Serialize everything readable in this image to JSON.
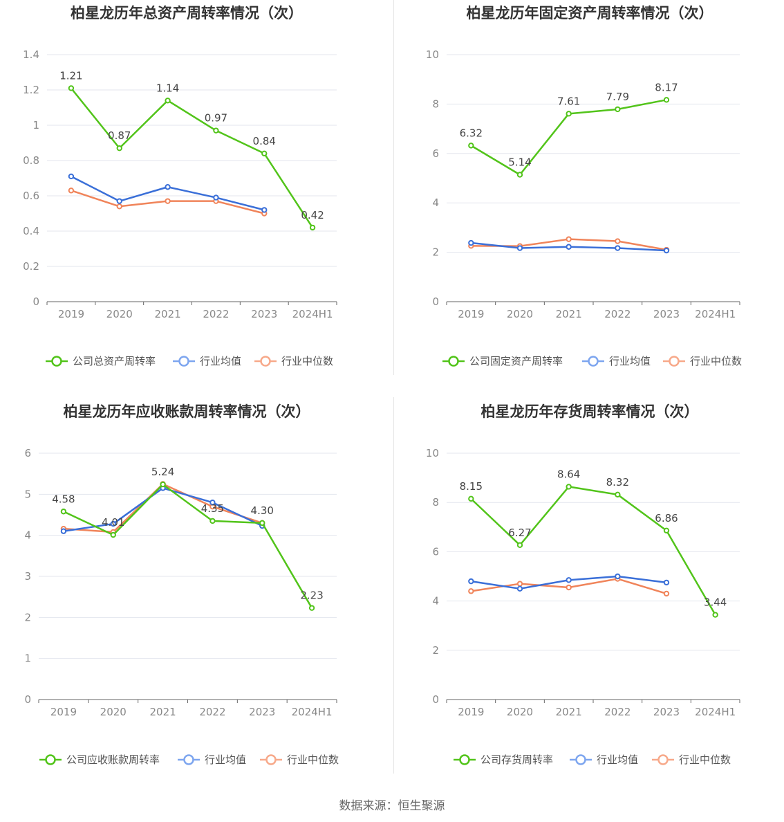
{
  "source": "数据来源：恒生聚源",
  "colors": {
    "company": "#52c41a",
    "industry_avg": "#3a6fd8",
    "industry_median": "#f0845a"
  },
  "chart_data": [
    {
      "type": "line",
      "title": "柏星龙历年总资产周转率情况（次）",
      "categories": [
        "2019",
        "2020",
        "2021",
        "2022",
        "2023",
        "2024H1"
      ],
      "ylim": [
        0,
        1.4
      ],
      "yticks": [
        "0",
        "0.2",
        "0.4",
        "0.6",
        "0.8",
        "1",
        "1.2",
        "1.4"
      ],
      "grid": true,
      "legend_position": "bottom",
      "series": [
        {
          "name": "公司总资产周转率",
          "values": [
            1.21,
            0.87,
            1.14,
            0.97,
            0.84,
            0.42
          ],
          "labels": [
            "1.21",
            "0.87",
            "1.14",
            "0.97",
            "0.84",
            "0.42"
          ]
        },
        {
          "name": "行业均值",
          "values": [
            0.71,
            0.57,
            0.65,
            0.59,
            0.52,
            null
          ]
        },
        {
          "name": "行业中位数",
          "values": [
            0.63,
            0.54,
            0.57,
            0.57,
            0.5,
            null
          ]
        }
      ]
    },
    {
      "type": "line",
      "title": "柏星龙历年固定资产周转率情况（次）",
      "categories": [
        "2019",
        "2020",
        "2021",
        "2022",
        "2023",
        "2024H1"
      ],
      "ylim": [
        0,
        10
      ],
      "yticks": [
        "0",
        "2",
        "4",
        "6",
        "8",
        "10"
      ],
      "grid": true,
      "legend_position": "bottom",
      "series": [
        {
          "name": "公司固定资产周转率",
          "values": [
            6.32,
            5.14,
            7.61,
            7.79,
            8.17,
            null
          ],
          "labels": [
            "6.32",
            "5.14",
            "7.61",
            "7.79",
            "8.17",
            ""
          ]
        },
        {
          "name": "行业均值",
          "values": [
            2.38,
            2.17,
            2.22,
            2.17,
            2.07,
            null
          ]
        },
        {
          "name": "行业中位数",
          "values": [
            2.26,
            2.25,
            2.53,
            2.45,
            2.1,
            null
          ]
        }
      ]
    },
    {
      "type": "line",
      "title": "柏星龙历年应收账款周转率情况（次）",
      "categories": [
        "2019",
        "2020",
        "2021",
        "2022",
        "2023",
        "2024H1"
      ],
      "ylim": [
        0,
        6
      ],
      "yticks": [
        "0",
        "1",
        "2",
        "3",
        "4",
        "5",
        "6"
      ],
      "grid": true,
      "legend_position": "bottom",
      "series": [
        {
          "name": "公司应收账款周转率",
          "values": [
            4.58,
            4.01,
            5.24,
            4.35,
            4.3,
            2.23
          ],
          "labels": [
            "4.58",
            "4.01",
            "5.24",
            "4.35",
            "4.30",
            "2.23"
          ]
        },
        {
          "name": "行业均值",
          "values": [
            4.1,
            4.28,
            5.15,
            4.8,
            4.23,
            null
          ]
        },
        {
          "name": "行业中位数",
          "values": [
            4.16,
            4.08,
            5.25,
            4.7,
            4.3,
            null
          ]
        }
      ]
    },
    {
      "type": "line",
      "title": "柏星龙历年存货周转率情况（次）",
      "categories": [
        "2019",
        "2020",
        "2021",
        "2022",
        "2023",
        "2024H1"
      ],
      "ylim": [
        0,
        10
      ],
      "yticks": [
        "0",
        "2",
        "4",
        "6",
        "8",
        "10"
      ],
      "grid": true,
      "legend_position": "bottom",
      "series": [
        {
          "name": "公司存货周转率",
          "values": [
            8.15,
            6.27,
            8.64,
            8.32,
            6.86,
            3.44
          ],
          "labels": [
            "8.15",
            "6.27",
            "8.64",
            "8.32",
            "6.86",
            "3.44"
          ]
        },
        {
          "name": "行业均值",
          "values": [
            4.8,
            4.5,
            4.85,
            5.0,
            4.75,
            null
          ]
        },
        {
          "name": "行业中位数",
          "values": [
            4.4,
            4.7,
            4.55,
            4.9,
            4.3,
            null
          ]
        }
      ]
    }
  ]
}
